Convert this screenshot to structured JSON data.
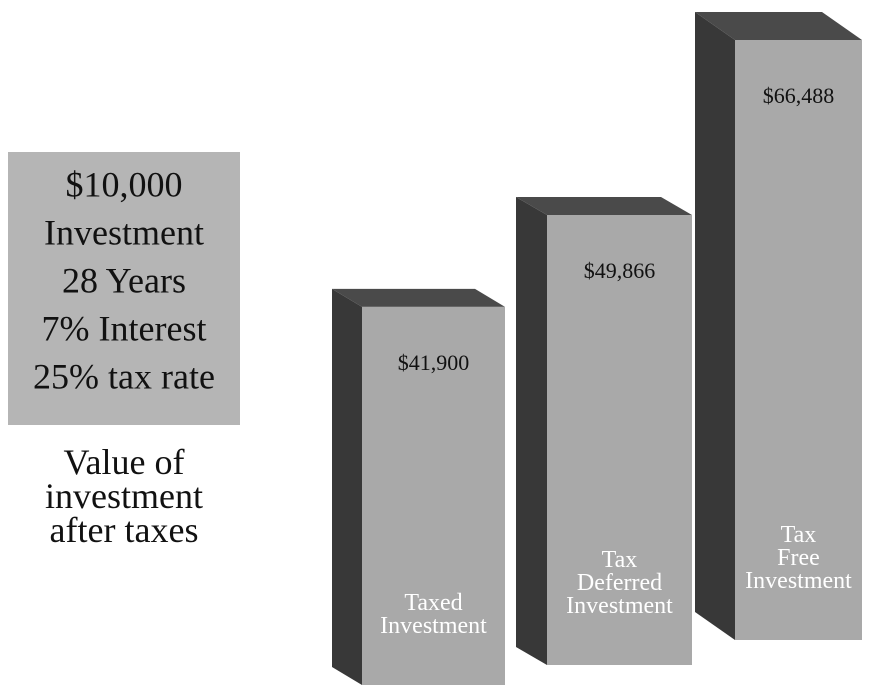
{
  "chart_data": {
    "type": "bar3d",
    "info_box": [
      "$10,000",
      "Investment",
      "28 Years",
      "7% Interest",
      "25% tax rate"
    ],
    "caption": "Value of\ninvestment\nafter taxes",
    "categories": [
      "Taxed\nInvestment",
      "Tax\nDeferred\nInvestment",
      "Tax\nFree\nInvestment"
    ],
    "values": [
      41900,
      49866,
      66488
    ],
    "value_labels": [
      "$41,900",
      "$49,866",
      "$66,488"
    ],
    "colors": {
      "front": "#a9a9a9",
      "side": "#383838",
      "top": "#4a4a4a",
      "box": "#b5b5b5"
    }
  }
}
